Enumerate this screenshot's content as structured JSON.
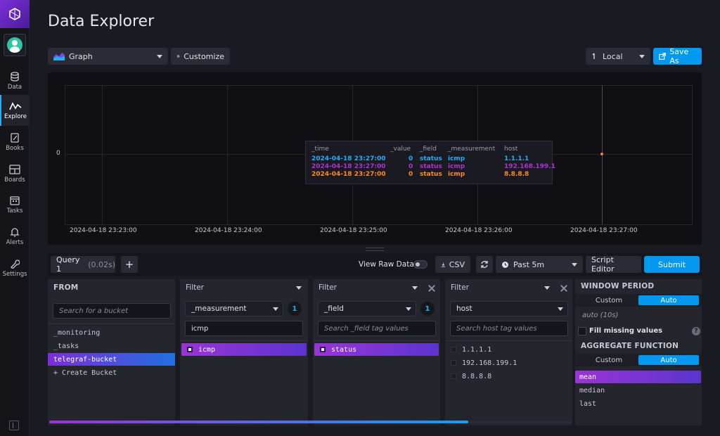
{
  "page": {
    "title": "Data Explorer"
  },
  "nav": {
    "items": [
      {
        "label": "Data",
        "icon": "database-icon"
      },
      {
        "label": "Explore",
        "icon": "explore-icon"
      },
      {
        "label": "Books",
        "icon": "notebook-icon"
      },
      {
        "label": "Boards",
        "icon": "dashboard-icon"
      },
      {
        "label": "Tasks",
        "icon": "calendar-icon"
      },
      {
        "label": "Alerts",
        "icon": "bell-icon"
      },
      {
        "label": "Settings",
        "icon": "wrench-icon"
      }
    ],
    "active": "Explore"
  },
  "toolbar": {
    "graph_type": "Graph",
    "customize": "Customize",
    "timezone": "Local",
    "save_as": "Save As"
  },
  "graph": {
    "y_tick": "0",
    "x_ticks": [
      "2024-04-18 23:23:00",
      "2024-04-18 23:24:00",
      "2024-04-18 23:25:00",
      "2024-04-18 23:26:00",
      "2024-04-18 23:27:00"
    ],
    "tooltip": {
      "headers": [
        "_time",
        "_value",
        "_field",
        "_measurement",
        "host"
      ],
      "rows": [
        {
          "time": "2024-04-18 23:27:00",
          "value": "0",
          "field": "status",
          "measurement": "icmp",
          "host": "1.1.1.1",
          "color": "#22adf6"
        },
        {
          "time": "2024-04-18 23:27:00",
          "value": "0",
          "field": "status",
          "measurement": "icmp",
          "host": "192.168.199.1",
          "color": "#b22fd4"
        },
        {
          "time": "2024-04-18 23:27:00",
          "value": "0",
          "field": "status",
          "measurement": "icmp",
          "host": "8.8.8.8",
          "color": "#ff8c1a"
        }
      ]
    }
  },
  "chart_data": {
    "type": "line",
    "x": [
      "2024-04-18 23:27:00"
    ],
    "series": [
      {
        "name": "1.1.1.1",
        "values": [
          0
        ]
      },
      {
        "name": "192.168.199.1",
        "values": [
          0
        ]
      },
      {
        "name": "8.8.8.8",
        "values": [
          0
        ]
      }
    ],
    "x_ticks": [
      "2024-04-18 23:23:00",
      "2024-04-18 23:24:00",
      "2024-04-18 23:25:00",
      "2024-04-18 23:26:00",
      "2024-04-18 23:27:00"
    ],
    "y_ticks": [
      "0"
    ]
  },
  "querybar": {
    "query_name": "Query 1",
    "query_time": "(0.02s)",
    "add": "+",
    "view_raw": "View Raw Data",
    "csv": "CSV",
    "time_range": "Past 5m",
    "script_editor": "Script Editor",
    "submit": "Submit"
  },
  "from": {
    "header": "FROM",
    "search_placeholder": "Search for a bucket",
    "buckets": [
      "_monitoring",
      "_tasks",
      "telegraf-bucket"
    ],
    "selected": "telegraf-bucket",
    "create": "+ Create Bucket"
  },
  "filters": [
    {
      "header": "Filter",
      "key": "_measurement",
      "count": "1",
      "search_value": "icmp",
      "search_placeholder": "",
      "values": [
        "icmp"
      ]
    },
    {
      "header": "Filter",
      "key": "_field",
      "count": "1",
      "search_value": "",
      "search_placeholder": "Search _field tag values",
      "values": [
        "status"
      ]
    },
    {
      "header": "Filter",
      "key": "host",
      "count": "",
      "search_value": "",
      "search_placeholder": "Search host tag values",
      "values": [
        "1.1.1.1",
        "192.168.199.1",
        "8.8.8.8"
      ]
    }
  ],
  "window": {
    "header": "WINDOW PERIOD",
    "custom": "Custom",
    "auto": "Auto",
    "auto_value": "auto (10s)",
    "fill_missing": "Fill missing values",
    "help": "?",
    "agg_header": "AGGREGATE FUNCTION",
    "agg_custom": "Custom",
    "agg_auto": "Auto",
    "functions": [
      "mean",
      "median",
      "last"
    ],
    "selected": "mean"
  }
}
